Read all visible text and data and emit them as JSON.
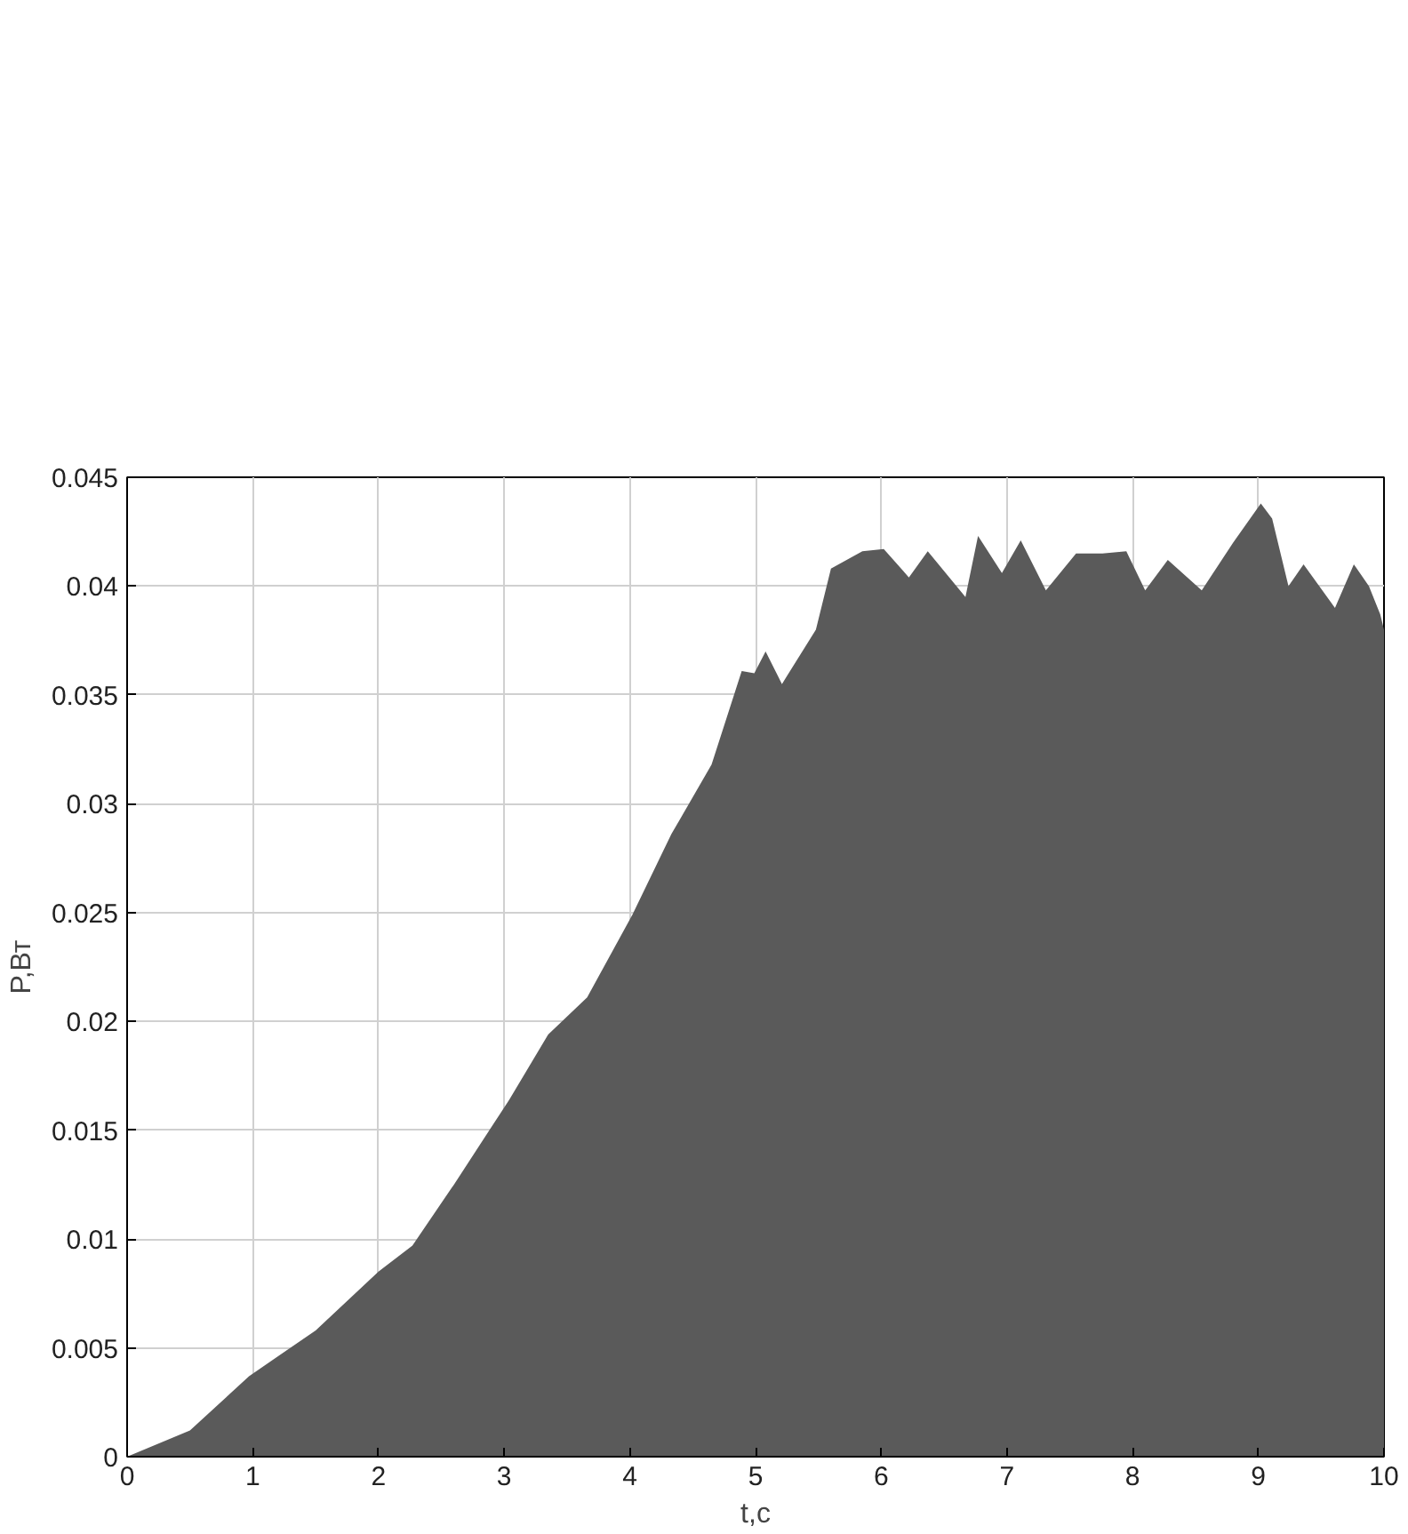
{
  "chart_data": {
    "type": "area",
    "xlabel": "t,с",
    "ylabel": "P,Вт",
    "x": [
      0,
      0.5,
      0.97,
      1.5,
      2.0,
      2.27,
      2.6,
      3.04,
      3.35,
      3.66,
      4.02,
      4.33,
      4.65,
      4.89,
      4.99,
      5.08,
      5.21,
      5.48,
      5.6,
      5.85,
      6.02,
      6.22,
      6.37,
      6.67,
      6.77,
      6.96,
      7.11,
      7.31,
      7.55,
      7.76,
      7.95,
      8.1,
      8.28,
      8.55,
      8.8,
      9.02,
      9.11,
      9.24,
      9.36,
      9.61,
      9.76,
      9.88,
      9.97,
      10
    ],
    "series": [
      {
        "color": "#5a5a5a",
        "values": [
          0,
          0.0012,
          0.0037,
          0.0058,
          0.0085,
          0.0097,
          0.0125,
          0.0164,
          0.0194,
          0.0211,
          0.0249,
          0.0286,
          0.0318,
          0.0361,
          0.036,
          0.037,
          0.0355,
          0.038,
          0.0408,
          0.0416,
          0.0417,
          0.0404,
          0.0416,
          0.0395,
          0.0423,
          0.0406,
          0.0421,
          0.0398,
          0.0415,
          0.0415,
          0.0416,
          0.0398,
          0.0412,
          0.0398,
          0.042,
          0.0438,
          0.0431,
          0.04,
          0.041,
          0.039,
          0.041,
          0.04,
          0.0387,
          0.038
        ]
      }
    ],
    "xlim": [
      0,
      10
    ],
    "xticks": [
      0,
      1,
      2,
      3,
      4,
      5,
      6,
      7,
      8,
      9,
      10
    ],
    "ylim": [
      0,
      0.045
    ],
    "yticks": [
      0,
      0.005,
      0.01,
      0.015,
      0.02,
      0.025,
      0.03,
      0.035,
      0.04,
      0.045
    ],
    "grid": true
  }
}
